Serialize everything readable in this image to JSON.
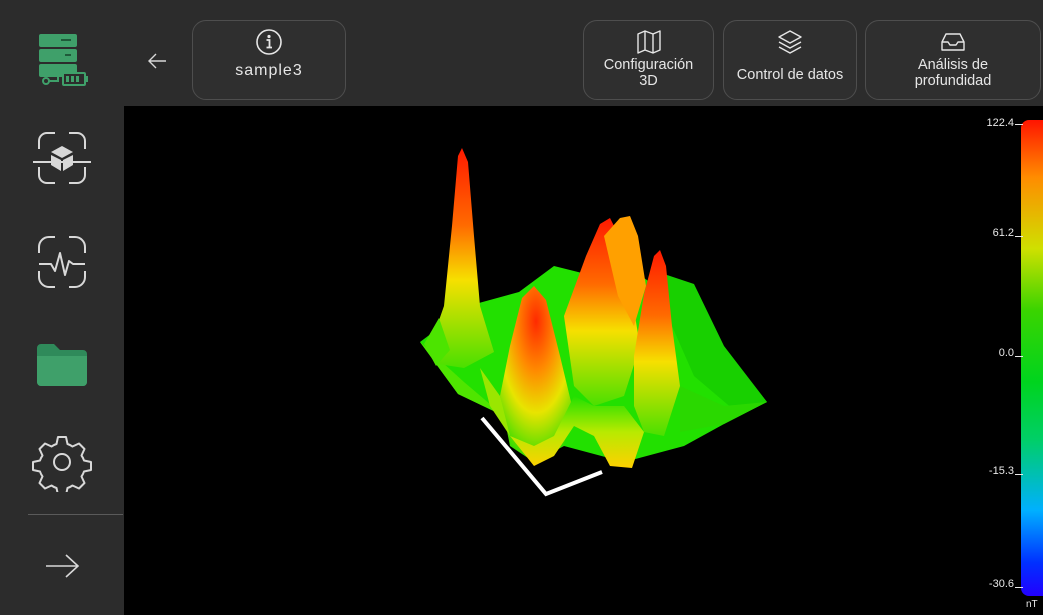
{
  "header": {
    "sample_name": "sample3",
    "buttons": [
      {
        "label": "Configuración\n3D",
        "icon": "map-icon"
      },
      {
        "label": "Control de datos",
        "icon": "layers-icon"
      },
      {
        "label": "Análisis de\nprofundidad",
        "icon": "inbox-icon"
      }
    ]
  },
  "sidebar": {
    "items": [
      {
        "icon": "server-battery-icon",
        "active": true
      },
      {
        "icon": "scan-3d-icon"
      },
      {
        "icon": "scan-signal-icon"
      },
      {
        "icon": "folder-icon",
        "active": true
      },
      {
        "icon": "gear-icon"
      },
      {
        "icon": "arrow-right-icon"
      }
    ]
  },
  "color_scale": {
    "ticks": [
      "122.4",
      "61.2",
      "0.0",
      "-15.3",
      "-30.6"
    ],
    "unit": "nT"
  },
  "colors": {
    "accent": "#3fa06a",
    "background": "#2c2c2c",
    "viewport": "#000000"
  }
}
